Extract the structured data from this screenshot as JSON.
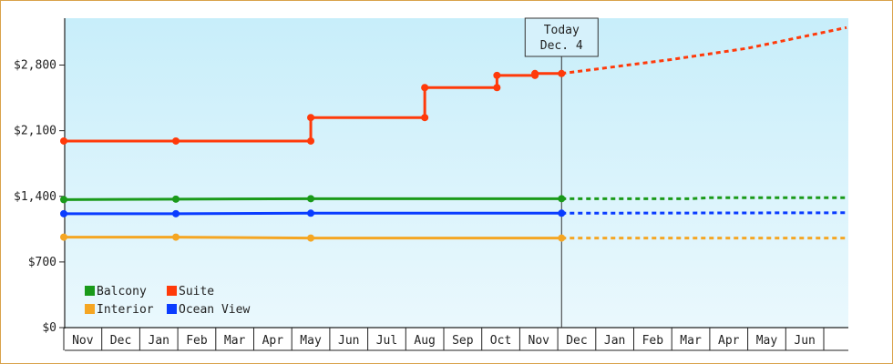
{
  "colors": {
    "plot_bg_top": "#c8eefa",
    "plot_bg_bottom": "#eaf8fd",
    "frame": "#d9a24a",
    "Balcony": "#1a9a1a",
    "Suite": "#ff3a0a",
    "Interior": "#f5a623",
    "Ocean View": "#0a3cff"
  },
  "chart_data": {
    "type": "line",
    "title": "",
    "xlabel": "",
    "ylabel": "",
    "ylim": [
      0,
      3300
    ],
    "y_ticks": [
      0,
      700,
      1400,
      2100,
      2800
    ],
    "y_tick_labels": [
      "$0",
      "$700",
      "$1,400",
      "$2,100",
      "$2,800"
    ],
    "x_range": [
      0,
      20.6
    ],
    "x_tick_labels": [
      "Nov",
      "Dec",
      "Jan",
      "Feb",
      "Mar",
      "Apr",
      "May",
      "Jun",
      "Jul",
      "Aug",
      "Sep",
      "Oct",
      "Nov",
      "Dec",
      "Jan",
      "Feb",
      "Mar",
      "Apr",
      "May",
      "Jun"
    ],
    "today": {
      "x": 13.1,
      "label_line1": "Today",
      "label_line2": "Dec. 4"
    },
    "legend_position": "bottom-left",
    "series": [
      {
        "name": "Balcony",
        "step": false,
        "points": [
          [
            0,
            1365
          ],
          [
            2.95,
            1370
          ],
          [
            6.5,
            1375
          ],
          [
            13.1,
            1375
          ]
        ],
        "forecast": [
          [
            13.1,
            1375
          ],
          [
            16.5,
            1375
          ],
          [
            17,
            1385
          ],
          [
            20.6,
            1385
          ]
        ]
      },
      {
        "name": "Suite",
        "step": true,
        "points": [
          [
            0,
            1990
          ],
          [
            2.95,
            1990
          ],
          [
            6.5,
            1990
          ],
          [
            6.5,
            2240
          ],
          [
            9.5,
            2240
          ],
          [
            9.5,
            2560
          ],
          [
            11.4,
            2560
          ],
          [
            11.4,
            2690
          ],
          [
            12.4,
            2690
          ],
          [
            12.4,
            2710
          ],
          [
            13.1,
            2710
          ]
        ],
        "forecast": [
          [
            13.1,
            2710
          ],
          [
            16,
            2860
          ],
          [
            18,
            2980
          ],
          [
            20.6,
            3200
          ]
        ]
      },
      {
        "name": "Interior",
        "step": false,
        "points": [
          [
            0,
            965
          ],
          [
            2.95,
            965
          ],
          [
            6.5,
            955
          ],
          [
            13.1,
            955
          ]
        ],
        "forecast": [
          [
            13.1,
            955
          ],
          [
            20.6,
            955
          ]
        ]
      },
      {
        "name": "Ocean View",
        "step": false,
        "points": [
          [
            0,
            1215
          ],
          [
            2.95,
            1215
          ],
          [
            6.5,
            1220
          ],
          [
            13.1,
            1220
          ]
        ],
        "forecast": [
          [
            13.1,
            1220
          ],
          [
            20.6,
            1225
          ]
        ]
      }
    ],
    "markers": {
      "Balcony": [
        [
          0,
          1365
        ],
        [
          2.95,
          1370
        ],
        [
          6.5,
          1375
        ],
        [
          13.1,
          1375
        ]
      ],
      "Suite": [
        [
          0,
          1990
        ],
        [
          2.95,
          1990
        ],
        [
          6.5,
          1990
        ],
        [
          6.5,
          2240
        ],
        [
          9.5,
          2240
        ],
        [
          9.5,
          2560
        ],
        [
          11.4,
          2560
        ],
        [
          11.4,
          2690
        ],
        [
          12.4,
          2690
        ],
        [
          12.4,
          2710
        ],
        [
          13.1,
          2710
        ]
      ],
      "Interior": [
        [
          0,
          965
        ],
        [
          2.95,
          965
        ],
        [
          6.5,
          955
        ],
        [
          13.1,
          955
        ]
      ],
      "Ocean View": [
        [
          0,
          1215
        ],
        [
          2.95,
          1215
        ],
        [
          6.5,
          1220
        ],
        [
          13.1,
          1220
        ]
      ]
    },
    "legend": [
      {
        "name": "Balcony"
      },
      {
        "name": "Suite"
      },
      {
        "name": "Interior"
      },
      {
        "name": "Ocean View"
      }
    ]
  }
}
